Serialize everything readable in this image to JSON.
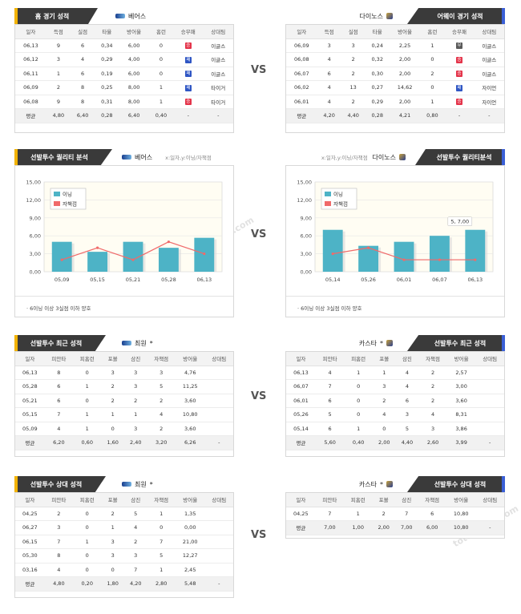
{
  "colors": {
    "bar": "#4db3c6",
    "line": "#f06a6a",
    "win": "#e4344a",
    "loss": "#5a5a5a",
    "draw": "#2f56c4"
  },
  "sections": {
    "home_record": {
      "title": "홈 경기 성적",
      "team": "베어스",
      "headers": [
        "일자",
        "득점",
        "실점",
        "타율",
        "방어율",
        "홈런",
        "승무패",
        "상대팀"
      ],
      "rows": [
        [
          "06,13",
          "9",
          "6",
          "0,34",
          "6,00",
          "0",
          "승",
          "이글스"
        ],
        [
          "06,12",
          "3",
          "4",
          "0,29",
          "4,00",
          "0",
          "패",
          "이글스"
        ],
        [
          "06,11",
          "1",
          "6",
          "0,19",
          "6,00",
          "0",
          "패",
          "이글스"
        ],
        [
          "06,09",
          "2",
          "8",
          "0,25",
          "8,00",
          "1",
          "패",
          "타이거"
        ],
        [
          "06,08",
          "9",
          "8",
          "0,31",
          "8,00",
          "1",
          "승",
          "타이거"
        ]
      ],
      "avg": [
        "평균",
        "4,80",
        "6,40",
        "0,28",
        "6,40",
        "0,40",
        "-",
        "-"
      ]
    },
    "away_record": {
      "title": "어웨이 경기 성적",
      "team": "다이노스",
      "headers": [
        "일자",
        "득점",
        "실점",
        "타율",
        "방어율",
        "홈런",
        "승무패",
        "상대팀"
      ],
      "rows": [
        [
          "06,09",
          "3",
          "3",
          "0,24",
          "2,25",
          "1",
          "무",
          "이글스"
        ],
        [
          "06,08",
          "4",
          "2",
          "0,32",
          "2,00",
          "0",
          "승",
          "이글스"
        ],
        [
          "06,07",
          "6",
          "2",
          "0,30",
          "2,00",
          "2",
          "승",
          "이글스"
        ],
        [
          "06,02",
          "4",
          "13",
          "0,27",
          "14,62",
          "0",
          "패",
          "자이언"
        ],
        [
          "06,01",
          "4",
          "2",
          "0,29",
          "2,00",
          "1",
          "승",
          "자이언"
        ]
      ],
      "avg": [
        "평균",
        "4,20",
        "4,40",
        "0,28",
        "4,21",
        "0,80",
        "-",
        "-"
      ]
    },
    "quality_left": {
      "title": "선발투수 퀄리티 분석",
      "team": "베어스",
      "filter": "x:일자,y:이닝/자책점",
      "note": "6이닝 이상 3실점 이하 양호"
    },
    "quality_right": {
      "title": "선발투수 퀄리티분석",
      "team": "다이노스",
      "filter": "x:일자,y:이닝/자책점",
      "note": "6이닝 이상 3실점 이하 양호"
    },
    "recent_left": {
      "title": "선발투수 최근 성적",
      "team": "최원",
      "headers": [
        "일자",
        "피안타",
        "피홈런",
        "포볼",
        "삼진",
        "자책점",
        "방어율",
        "상대팀"
      ],
      "rows": [
        [
          "06,13",
          "8",
          "0",
          "3",
          "3",
          "3",
          "4,76",
          ""
        ],
        [
          "05,28",
          "6",
          "1",
          "2",
          "3",
          "5",
          "11,25",
          ""
        ],
        [
          "05,21",
          "6",
          "0",
          "2",
          "2",
          "2",
          "3,60",
          ""
        ],
        [
          "05,15",
          "7",
          "1",
          "1",
          "1",
          "4",
          "10,80",
          ""
        ],
        [
          "05,09",
          "4",
          "1",
          "0",
          "3",
          "2",
          "3,60",
          ""
        ]
      ],
      "avg": [
        "평균",
        "6,20",
        "0,60",
        "1,60",
        "2,40",
        "3,20",
        "6,26",
        "-"
      ]
    },
    "recent_right": {
      "title": "선발투수 최근 성적",
      "team": "카스타",
      "headers": [
        "일자",
        "피안타",
        "피홈런",
        "포볼",
        "삼진",
        "자책점",
        "방어율",
        "상대팀"
      ],
      "rows": [
        [
          "06,13",
          "4",
          "1",
          "1",
          "4",
          "2",
          "2,57",
          ""
        ],
        [
          "06,07",
          "7",
          "0",
          "3",
          "4",
          "2",
          "3,00",
          ""
        ],
        [
          "06,01",
          "6",
          "0",
          "2",
          "6",
          "2",
          "3,60",
          ""
        ],
        [
          "05,26",
          "5",
          "0",
          "4",
          "3",
          "4",
          "8,31",
          ""
        ],
        [
          "05,14",
          "6",
          "1",
          "0",
          "5",
          "3",
          "3,86",
          ""
        ]
      ],
      "avg": [
        "평균",
        "5,60",
        "0,40",
        "2,00",
        "4,40",
        "2,60",
        "3,99",
        "-"
      ]
    },
    "vs_left": {
      "title": "선발투수 상대 성적",
      "team": "최원",
      "headers": [
        "일자",
        "피안타",
        "피홈런",
        "포볼",
        "삼진",
        "자책점",
        "방어율",
        "상대팀"
      ],
      "rows": [
        [
          "04,25",
          "2",
          "0",
          "2",
          "5",
          "1",
          "1,35",
          ""
        ],
        [
          "06,27",
          "3",
          "0",
          "1",
          "4",
          "0",
          "0,00",
          ""
        ],
        [
          "06,15",
          "7",
          "1",
          "3",
          "2",
          "7",
          "21,00",
          ""
        ],
        [
          "05,30",
          "8",
          "0",
          "3",
          "3",
          "5",
          "12,27",
          ""
        ],
        [
          "03,16",
          "4",
          "0",
          "0",
          "7",
          "1",
          "2,45",
          ""
        ]
      ],
      "avg": [
        "평균",
        "4,80",
        "0,20",
        "1,80",
        "4,20",
        "2,80",
        "5,48",
        "-"
      ]
    },
    "vs_right": {
      "title": "선발투수 상대 성적",
      "team": "카스타",
      "headers": [
        "일자",
        "피안타",
        "피홈런",
        "포볼",
        "삼진",
        "자책점",
        "방어율",
        "상대팀"
      ],
      "rows": [
        [
          "04,25",
          "7",
          "1",
          "2",
          "7",
          "6",
          "10,80",
          ""
        ]
      ],
      "avg": [
        "평균",
        "7,00",
        "1,00",
        "2,00",
        "7,00",
        "6,00",
        "10,80",
        "-"
      ]
    }
  },
  "vs_label": "VS",
  "chart_data": [
    {
      "type": "bar",
      "categories": [
        "05,09",
        "05,15",
        "05,21",
        "05,28",
        "06,13"
      ],
      "series": [
        {
          "name": "이닝",
          "type": "bar",
          "values": [
            5,
            3.33,
            5,
            4,
            5.67
          ]
        },
        {
          "name": "자책점",
          "type": "line",
          "values": [
            2,
            4,
            2,
            5,
            3
          ]
        }
      ],
      "ylim": [
        0,
        15
      ],
      "yticks": [
        "0,00",
        "3,00",
        "6,00",
        "9,00",
        "12,00",
        "15,00"
      ],
      "legend": "top-left"
    },
    {
      "type": "bar",
      "categories": [
        "05,14",
        "05,26",
        "06,01",
        "06,07",
        "06,13"
      ],
      "series": [
        {
          "name": "이닝",
          "type": "bar",
          "values": [
            7,
            4.33,
            5,
            6,
            7
          ]
        },
        {
          "name": "자책점",
          "type": "line",
          "values": [
            3,
            4,
            2,
            2,
            2
          ]
        }
      ],
      "ylim": [
        0,
        15
      ],
      "yticks": [
        "0,00",
        "3,00",
        "6,00",
        "9,00",
        "12,00",
        "15,00"
      ],
      "legend": "top-left",
      "tooltip": "5, 7,00"
    }
  ]
}
